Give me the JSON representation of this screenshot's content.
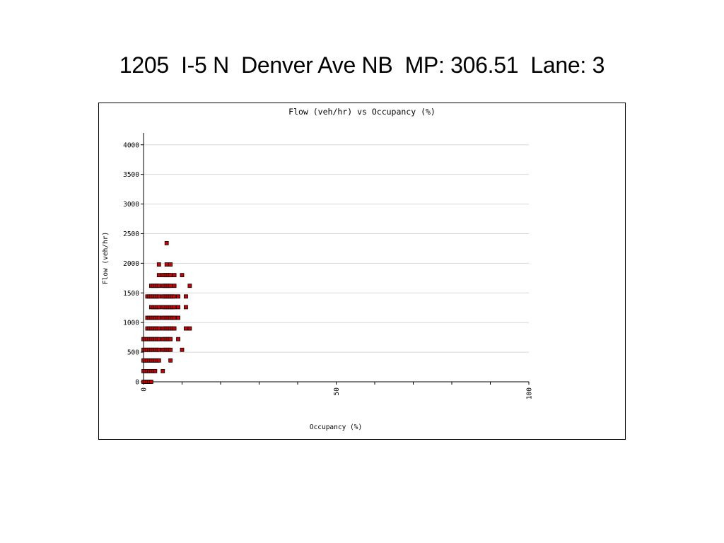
{
  "slide": {
    "title": "1205  I-5 N  Denver Ave NB  MP: 306.51  Lane: 3"
  },
  "colors": {
    "point_fill": "#cc0000",
    "point_stroke": "#000000",
    "grid": "#d8d8d8",
    "axis": "#000000"
  },
  "chart_data": {
    "type": "scatter",
    "title": "Flow (veh/hr) vs Occupancy (%)",
    "xlabel": "Occupancy (%)",
    "ylabel": "Flow (veh/hr)",
    "xlim": [
      0,
      100
    ],
    "ylim": [
      0,
      4200
    ],
    "xticks": [
      0,
      50,
      100
    ],
    "yticks": [
      0,
      500,
      1000,
      1500,
      2000,
      2500,
      3000,
      3500,
      4000
    ],
    "x_minor_tick_step": 10,
    "grid": "horizontal",
    "legend": "none",
    "series": [
      {
        "points": [
          [
            0,
            0
          ],
          [
            0.5,
            0
          ],
          [
            1,
            0
          ],
          [
            1.5,
            0
          ],
          [
            2,
            0
          ],
          [
            0,
            180
          ],
          [
            0.5,
            180
          ],
          [
            1,
            180
          ],
          [
            1.5,
            180
          ],
          [
            2,
            180
          ],
          [
            2.5,
            180
          ],
          [
            3,
            180
          ],
          [
            5,
            180
          ],
          [
            0,
            360
          ],
          [
            0.5,
            360
          ],
          [
            1,
            360
          ],
          [
            1.5,
            360
          ],
          [
            2,
            360
          ],
          [
            2.5,
            360
          ],
          [
            3,
            360
          ],
          [
            3.5,
            360
          ],
          [
            4,
            360
          ],
          [
            7,
            360
          ],
          [
            0,
            540
          ],
          [
            0.5,
            540
          ],
          [
            1,
            540
          ],
          [
            1.5,
            540
          ],
          [
            2,
            540
          ],
          [
            2.5,
            540
          ],
          [
            3,
            540
          ],
          [
            3.5,
            540
          ],
          [
            4,
            540
          ],
          [
            5,
            540
          ],
          [
            5.5,
            540
          ],
          [
            6,
            540
          ],
          [
            6.5,
            540
          ],
          [
            7,
            540
          ],
          [
            10,
            540
          ],
          [
            0,
            720
          ],
          [
            0.5,
            720
          ],
          [
            1,
            720
          ],
          [
            1.5,
            720
          ],
          [
            2,
            720
          ],
          [
            2.5,
            720
          ],
          [
            3,
            720
          ],
          [
            3.5,
            720
          ],
          [
            4,
            720
          ],
          [
            5,
            720
          ],
          [
            5.5,
            720
          ],
          [
            6,
            720
          ],
          [
            6.5,
            720
          ],
          [
            7,
            720
          ],
          [
            9,
            720
          ],
          [
            1,
            900
          ],
          [
            1.5,
            900
          ],
          [
            2,
            900
          ],
          [
            2.5,
            900
          ],
          [
            3,
            900
          ],
          [
            3.5,
            900
          ],
          [
            4,
            900
          ],
          [
            5,
            900
          ],
          [
            5.5,
            900
          ],
          [
            6,
            900
          ],
          [
            6.5,
            900
          ],
          [
            7,
            900
          ],
          [
            7.5,
            900
          ],
          [
            8,
            900
          ],
          [
            11,
            900
          ],
          [
            12,
            900
          ],
          [
            1,
            1080
          ],
          [
            1.5,
            1080
          ],
          [
            2,
            1080
          ],
          [
            2.5,
            1080
          ],
          [
            3,
            1080
          ],
          [
            3.5,
            1080
          ],
          [
            4,
            1080
          ],
          [
            5,
            1080
          ],
          [
            5.5,
            1080
          ],
          [
            6,
            1080
          ],
          [
            6.5,
            1080
          ],
          [
            7,
            1080
          ],
          [
            7.5,
            1080
          ],
          [
            8,
            1080
          ],
          [
            9,
            1080
          ],
          [
            2,
            1260
          ],
          [
            2.5,
            1260
          ],
          [
            3,
            1260
          ],
          [
            3.5,
            1260
          ],
          [
            4,
            1260
          ],
          [
            5,
            1260
          ],
          [
            5.5,
            1260
          ],
          [
            6,
            1260
          ],
          [
            6.5,
            1260
          ],
          [
            7,
            1260
          ],
          [
            7.5,
            1260
          ],
          [
            8,
            1260
          ],
          [
            9,
            1260
          ],
          [
            11,
            1260
          ],
          [
            1,
            1440
          ],
          [
            1.5,
            1440
          ],
          [
            2,
            1440
          ],
          [
            2.5,
            1440
          ],
          [
            3,
            1440
          ],
          [
            3.5,
            1440
          ],
          [
            4,
            1440
          ],
          [
            5,
            1440
          ],
          [
            5.5,
            1440
          ],
          [
            6,
            1440
          ],
          [
            6.5,
            1440
          ],
          [
            7,
            1440
          ],
          [
            7.5,
            1440
          ],
          [
            8,
            1440
          ],
          [
            9,
            1440
          ],
          [
            11,
            1440
          ],
          [
            2,
            1620
          ],
          [
            2.5,
            1620
          ],
          [
            3,
            1620
          ],
          [
            3.5,
            1620
          ],
          [
            4,
            1620
          ],
          [
            5,
            1620
          ],
          [
            5.5,
            1620
          ],
          [
            6,
            1620
          ],
          [
            6.5,
            1620
          ],
          [
            7,
            1620
          ],
          [
            8,
            1620
          ],
          [
            12,
            1620
          ],
          [
            4,
            1800
          ],
          [
            5,
            1800
          ],
          [
            5.5,
            1800
          ],
          [
            6,
            1800
          ],
          [
            6.5,
            1800
          ],
          [
            7,
            1800
          ],
          [
            8,
            1800
          ],
          [
            10,
            1800
          ],
          [
            4,
            1980
          ],
          [
            6,
            1980
          ],
          [
            7,
            1980
          ],
          [
            6,
            2340
          ]
        ]
      }
    ]
  }
}
